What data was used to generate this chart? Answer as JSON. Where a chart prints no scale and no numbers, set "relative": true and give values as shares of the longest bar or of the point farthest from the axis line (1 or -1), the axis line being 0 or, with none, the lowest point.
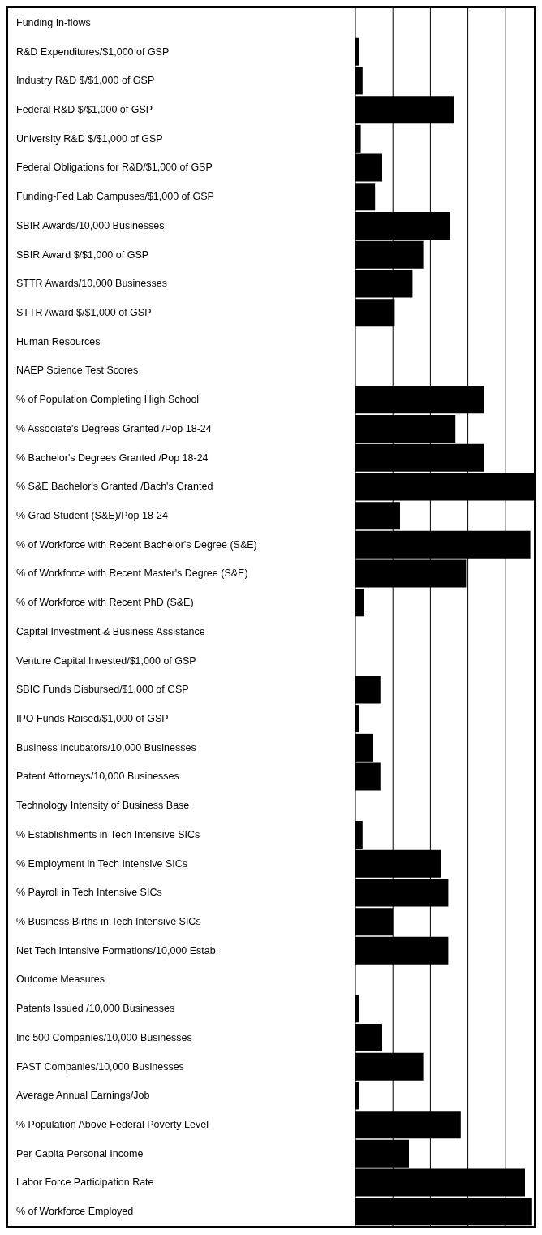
{
  "chart_data": {
    "type": "bar",
    "orientation": "horizontal",
    "relative": true,
    "grid": "x",
    "color": "#000000",
    "categories": [
      "Funding In-flows",
      "R&D Expenditures/$1,000 of GSP",
      "Industry R&D $/$1,000 of GSP",
      "Federal R&D $/$1,000 of GSP",
      "University R&D $/$1,000 of GSP",
      "Federal Obligations for R&D/$1,000 of GSP",
      "Funding-Fed Lab Campuses/$1,000 of GSP",
      "SBIR Awards/10,000 Businesses",
      "SBIR Award $/$1,000 of GSP",
      "STTR Awards/10,000 Businesses",
      "STTR Award $/$1,000 of GSP",
      "Human Resources",
      "NAEP Science Test Scores",
      "% of Population Completing High School",
      "% Associate's Degrees Granted /Pop 18-24",
      "% Bachelor's Degrees Granted /Pop 18-24",
      "% S&E Bachelor's Granted /Bach's Granted",
      "% Grad Student (S&E)/Pop 18-24",
      "% of Workforce with Recent Bachelor's Degree (S&E)",
      "% of Workforce with Recent Master's Degree (S&E)",
      "% of Workforce with Recent PhD (S&E)",
      "Capital Investment & Business Assistance",
      "Venture Capital Invested/$1,000 of GSP",
      "SBIC Funds Disbursed/$1,000 of GSP",
      "IPO Funds Raised/$1,000 of GSP",
      "Business Incubators/10,000 Businesses",
      "Patent Attorneys/10,000 Businesses",
      "Technology Intensity of Business Base",
      "% Establishments in Tech Intensive SICs",
      "% Employment in Tech Intensive SICs",
      "% Payroll in Tech Intensive SICs",
      "% Business Births in Tech Intensive SICs",
      "Net Tech Intensive Formations/10,000 Estab.",
      "Outcome Measures",
      "Patents Issued /10,000 Businesses",
      "Inc 500 Companies/10,000 Businesses",
      "FAST Companies/10,000 Businesses",
      "Average Annual Earnings/Job",
      "% Population Above Federal Poverty Level",
      "Per Capita Personal Income",
      "Labor Force Participation Rate",
      "% of Workforce Employed"
    ],
    "values": [
      null,
      0.02,
      0.04,
      0.55,
      0.03,
      0.15,
      0.11,
      0.53,
      0.38,
      0.32,
      0.22,
      null,
      null,
      0.72,
      0.56,
      0.72,
      1,
      0.25,
      0.98,
      0.62,
      0.05,
      null,
      null,
      0.14,
      0.02,
      0.1,
      0.14,
      null,
      0.04,
      0.48,
      0.52,
      0.21,
      0.52,
      null,
      0.02,
      0.15,
      0.38,
      0.02,
      0.59,
      0.3,
      0.95,
      0.99
    ]
  }
}
